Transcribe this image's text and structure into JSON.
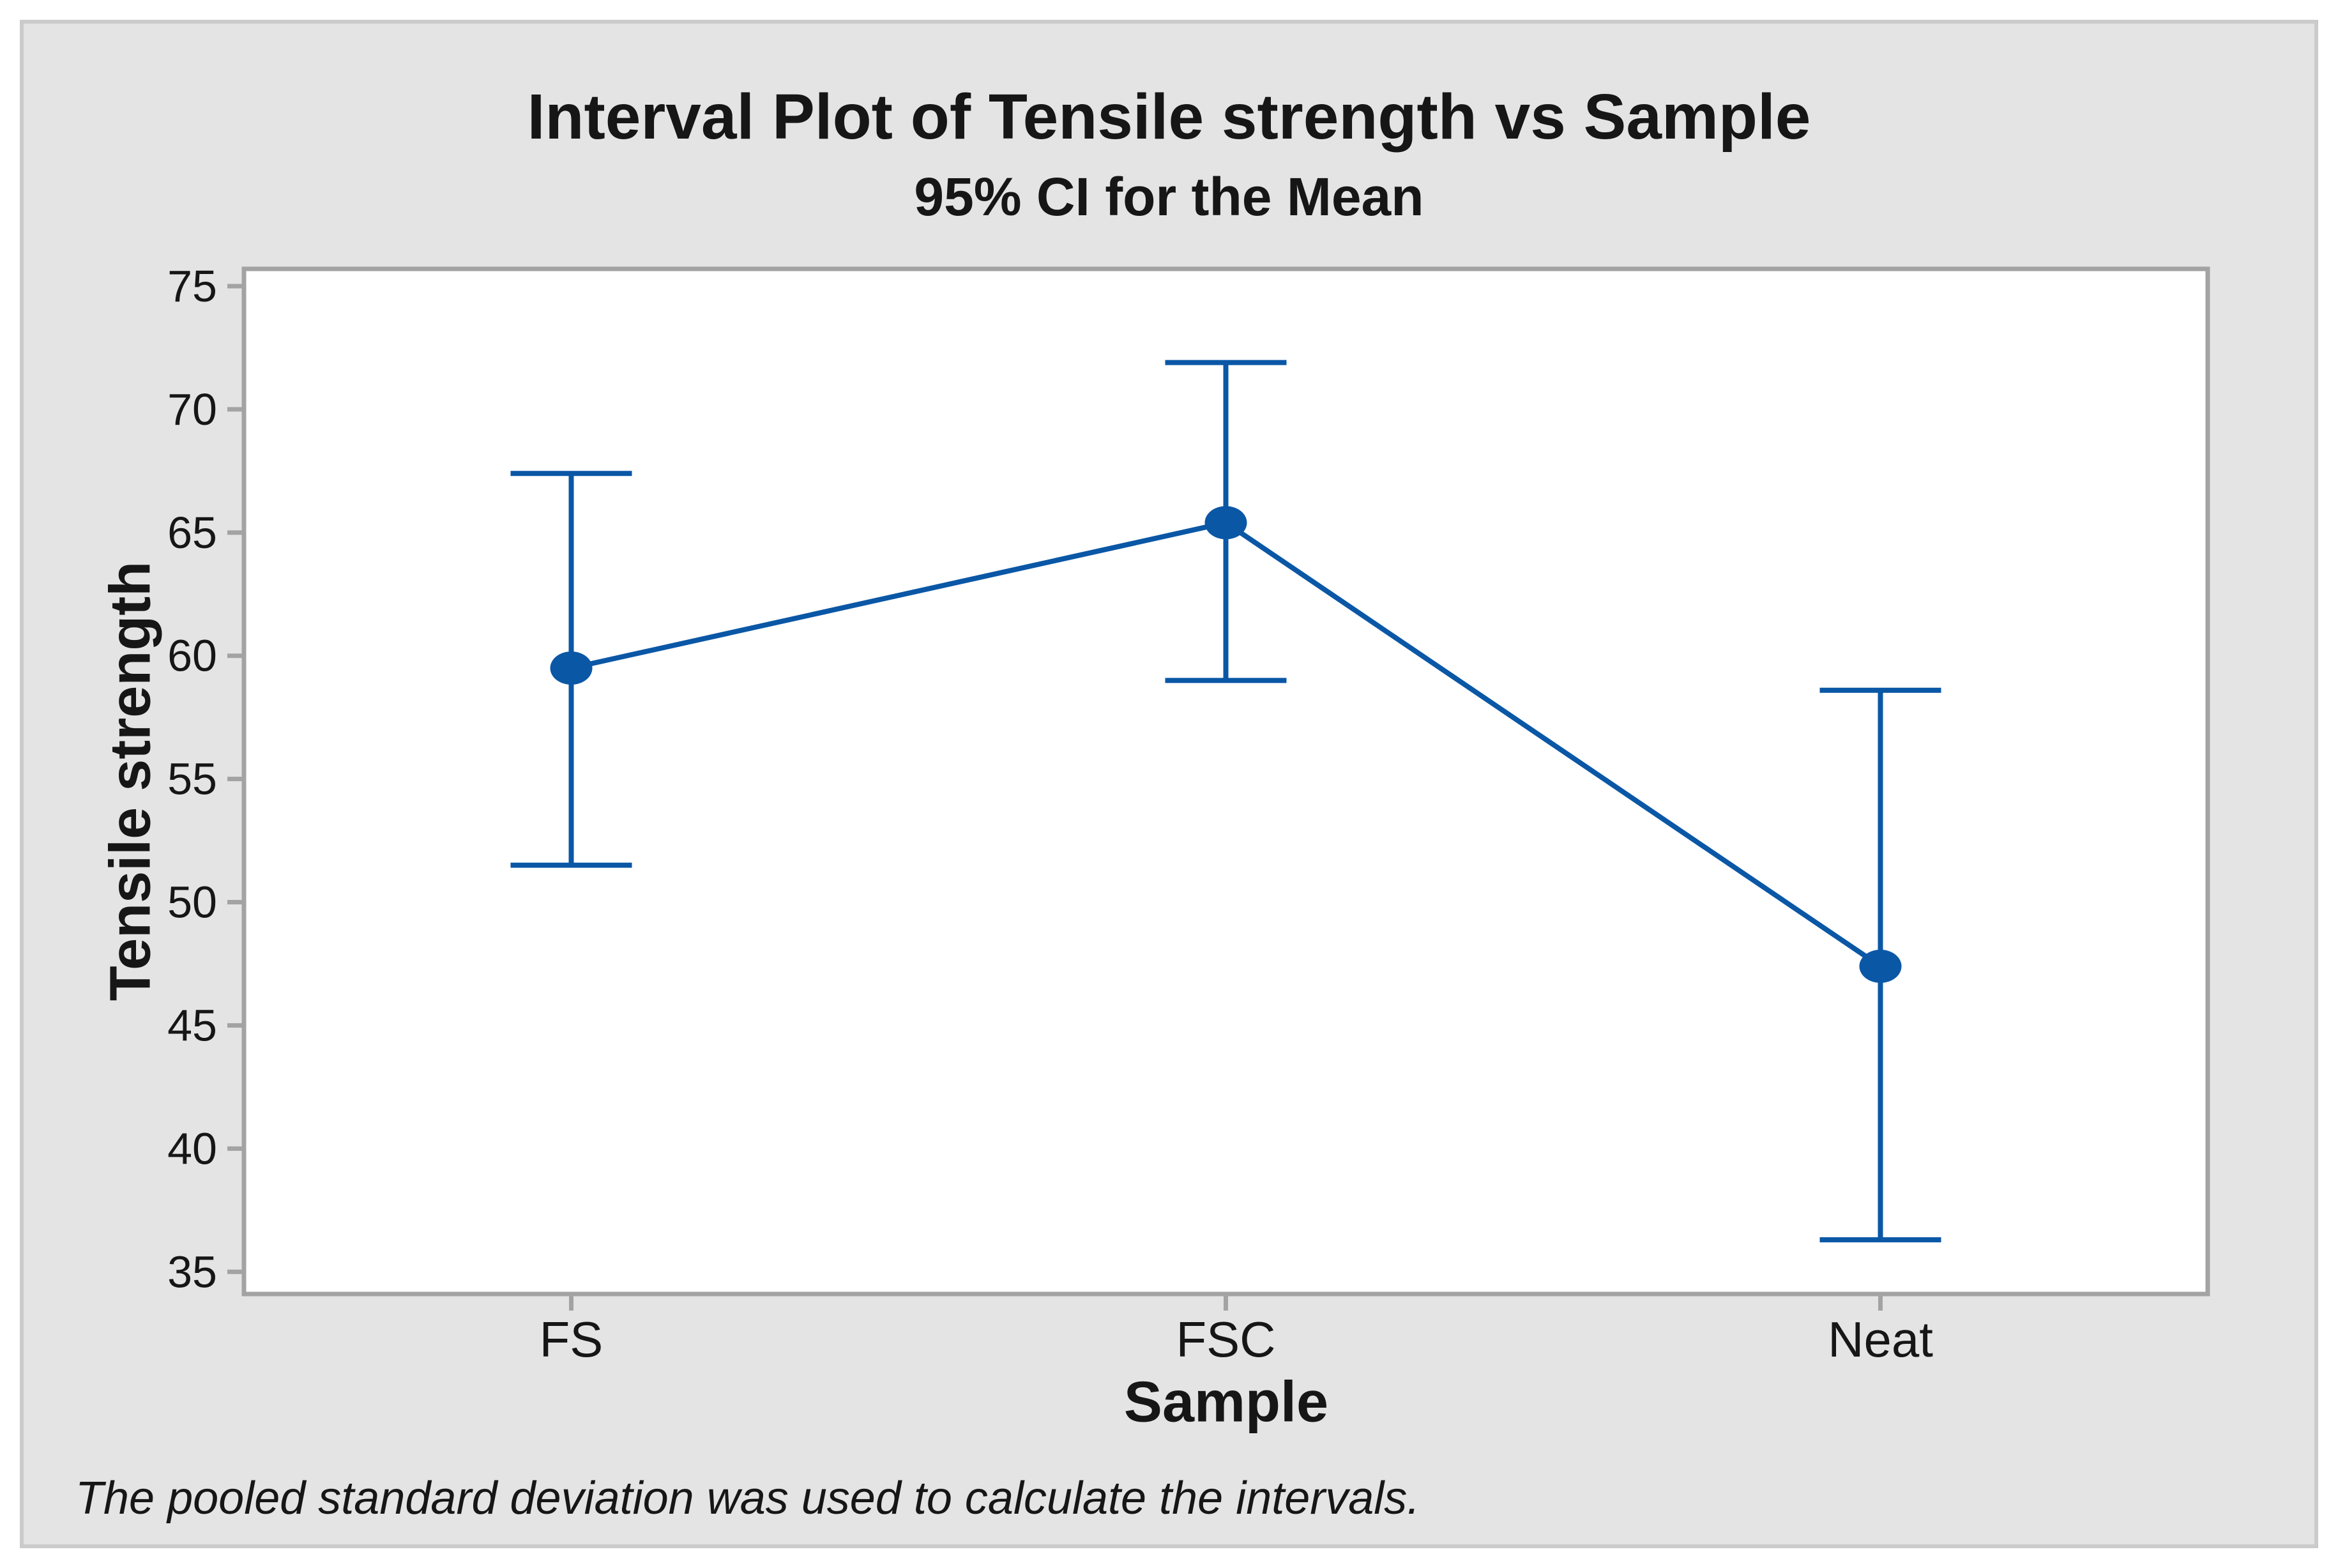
{
  "colors": {
    "accent_blue": "#0A57A6",
    "panel_bg": "#E4E4E4",
    "panel_border": "#CBCBCB",
    "plot_bg": "#FFFFFF",
    "frame_gray": "#A3A3A3",
    "text": "#161616"
  },
  "chart_data": {
    "type": "interval-plot",
    "title": "Interval Plot of Tensile strength vs Sample",
    "subtitle": "95% CI for the Mean",
    "xlabel": "Sample",
    "ylabel": "Tensile strength",
    "footnote": "The pooled standard deviation was used to calculate the intervals.",
    "categories": [
      "FS",
      "FSC",
      "Neat"
    ],
    "series": [
      {
        "name": "95% CI for the Mean",
        "means": [
          59.5,
          65.4,
          47.4
        ],
        "ci_low": [
          51.5,
          59.0,
          36.3
        ],
        "ci_high": [
          67.4,
          71.9,
          58.6
        ]
      }
    ],
    "yticks": [
      35,
      40,
      45,
      50,
      55,
      60,
      65,
      70,
      75
    ],
    "ylim": [
      34.1,
      75.7
    ],
    "grid": false,
    "legend": "none",
    "marker": "filled-circle",
    "connect_means": true
  }
}
